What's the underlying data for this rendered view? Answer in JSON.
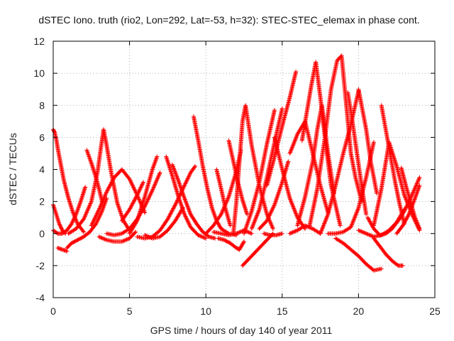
{
  "chart_data": {
    "type": "scatter",
    "title": "dSTEC Iono. truth (rio2, Lon=292, Lat=-53, h=32): STEC-STEC_elemax in phase cont.",
    "xlabel": "GPS time / hours of day 140 of year 2011",
    "ylabel": "dSTEC  / TECUs",
    "xlim": [
      0,
      25
    ],
    "ylim": [
      -4,
      12
    ],
    "xticks": [
      "0",
      "5",
      "10",
      "15",
      "20",
      "25"
    ],
    "yticks": [
      "-4",
      "-2",
      "0",
      "2",
      "4",
      "6",
      "8",
      "10",
      "12"
    ],
    "grid": true,
    "grid_style": "dotted",
    "marker": "+",
    "series_color": "#ff0000",
    "series": [
      {
        "x": [
          0.0,
          0.1,
          0.2,
          0.3,
          0.5,
          0.7,
          1.0,
          1.3,
          1.6,
          2.0
        ],
        "y": [
          6.5,
          6.3,
          5.9,
          5.3,
          4.3,
          3.3,
          2.2,
          1.3,
          0.6,
          0.1
        ]
      },
      {
        "x": [
          0.0,
          0.2,
          0.4,
          0.6,
          0.8
        ],
        "y": [
          1.8,
          1.2,
          0.6,
          0.2,
          0.0
        ]
      },
      {
        "x": [
          0.0,
          0.3,
          0.6,
          0.9,
          1.2,
          1.5,
          1.8,
          2.1
        ],
        "y": [
          0.2,
          0.0,
          0.0,
          0.2,
          0.6,
          1.2,
          2.0,
          2.9
        ]
      },
      {
        "x": [
          0.3,
          0.6,
          0.9
        ],
        "y": [
          -0.9,
          -1.0,
          -1.1
        ]
      },
      {
        "x": [
          0.9,
          1.2,
          1.6,
          2.0,
          2.4,
          2.8,
          3.2,
          3.5
        ],
        "y": [
          -0.9,
          -0.6,
          -0.4,
          -0.2,
          0.1,
          0.6,
          1.4,
          2.2
        ]
      },
      {
        "x": [
          2.2,
          2.5,
          2.8,
          3.0,
          3.2
        ],
        "y": [
          5.2,
          4.4,
          3.5,
          2.8,
          2.0
        ]
      },
      {
        "x": [
          1.0,
          1.5,
          2.0,
          2.5,
          2.9,
          3.1,
          3.3,
          3.5,
          3.8,
          4.2,
          4.6,
          5.0
        ],
        "y": [
          0.0,
          0.3,
          0.9,
          2.0,
          3.8,
          5.2,
          6.5,
          5.5,
          3.8,
          1.9,
          0.8,
          0.2
        ]
      },
      {
        "x": [
          3.0,
          3.5,
          4.0,
          4.5,
          5.0,
          5.4
        ],
        "y": [
          -0.2,
          -0.4,
          -0.5,
          -0.5,
          -0.3,
          0.1
        ]
      },
      {
        "x": [
          4.5,
          5.0,
          5.5,
          5.9
        ],
        "y": [
          0.8,
          1.5,
          2.4,
          3.2
        ]
      },
      {
        "x": [
          2.5,
          3.0,
          3.5,
          4.0,
          4.5,
          5.0,
          5.5,
          6.0
        ],
        "y": [
          0.5,
          1.5,
          2.6,
          3.5,
          4.0,
          3.4,
          2.4,
          1.3
        ]
      },
      {
        "x": [
          5.0,
          5.5,
          6.0,
          6.5,
          6.8
        ],
        "y": [
          0.0,
          0.8,
          2.3,
          4.0,
          4.8
        ]
      },
      {
        "x": [
          5.5,
          6.0,
          6.5,
          7.0,
          7.5,
          8.0,
          8.5,
          9.0,
          9.3
        ],
        "y": [
          -0.2,
          -0.3,
          -0.2,
          0.2,
          0.9,
          1.8,
          2.8,
          3.8,
          4.2
        ]
      },
      {
        "x": [
          7.4,
          7.8,
          8.2,
          8.6,
          9.0,
          9.5,
          10.0
        ],
        "y": [
          4.8,
          3.6,
          2.3,
          1.2,
          0.4,
          -0.1,
          -0.3
        ]
      },
      {
        "x": [
          7.8,
          8.2,
          8.6,
          9.0,
          9.4,
          9.8,
          10.2,
          10.6
        ],
        "y": [
          4.3,
          3.3,
          2.2,
          1.2,
          0.6,
          0.1,
          -0.2,
          -0.3
        ]
      },
      {
        "x": [
          9.2,
          9.5,
          9.8,
          10.1,
          10.4,
          10.7,
          11.0,
          11.5,
          12.0
        ],
        "y": [
          7.3,
          5.8,
          4.2,
          2.8,
          1.6,
          0.8,
          0.3,
          0.0,
          -0.1
        ]
      },
      {
        "x": [
          10.0,
          10.5,
          11.0,
          11.5,
          12.0,
          12.3
        ],
        "y": [
          0.0,
          0.5,
          1.2,
          2.3,
          3.9,
          5.2
        ]
      },
      {
        "x": [
          10.7,
          11.0,
          11.3,
          11.6
        ],
        "y": [
          4.0,
          2.8,
          1.5,
          0.5
        ]
      },
      {
        "x": [
          10.8,
          11.2,
          11.6,
          12.0,
          12.2,
          12.5
        ],
        "y": [
          -0.3,
          -0.4,
          -0.6,
          -0.9,
          -1.0,
          -0.5
        ]
      },
      {
        "x": [
          11.5,
          11.8,
          12.1,
          12.4,
          12.7
        ],
        "y": [
          5.8,
          4.5,
          3.2,
          2.1,
          1.2
        ]
      },
      {
        "x": [
          11.8,
          12.0,
          12.2,
          12.4,
          12.6,
          13.0,
          13.5,
          14.0,
          14.4
        ],
        "y": [
          0.0,
          2.0,
          4.5,
          7.0,
          8.0,
          5.5,
          3.0,
          1.2,
          0.3
        ]
      },
      {
        "x": [
          12.4,
          12.8,
          13.2,
          13.6,
          14.0,
          14.4
        ],
        "y": [
          -2.0,
          -1.6,
          -1.2,
          -0.8,
          -0.4,
          0.0
        ]
      },
      {
        "x": [
          12.5,
          13.0,
          13.5,
          14.0,
          14.5
        ],
        "y": [
          0.0,
          1.4,
          3.2,
          5.6,
          7.7
        ]
      },
      {
        "x": [
          13.0,
          13.5,
          14.0,
          14.5,
          15.0
        ],
        "y": [
          0.3,
          1.5,
          3.5,
          5.7,
          7.8
        ]
      },
      {
        "x": [
          14.0,
          14.5,
          15.0,
          15.5,
          15.9
        ],
        "y": [
          3.0,
          4.8,
          6.7,
          8.5,
          10.1
        ]
      },
      {
        "x": [
          14.5,
          15.0,
          15.5,
          16.0,
          16.5
        ],
        "y": [
          6.0,
          4.0,
          2.2,
          1.0,
          0.3
        ]
      },
      {
        "x": [
          13.5,
          14.0,
          14.5,
          15.0,
          15.4
        ],
        "y": [
          0.3,
          0.8,
          1.8,
          3.2,
          4.5
        ]
      },
      {
        "x": [
          15.5,
          16.0,
          16.5,
          17.0,
          17.5,
          18.0
        ],
        "y": [
          5.0,
          6.2,
          7.0,
          5.0,
          3.0,
          1.3
        ]
      },
      {
        "x": [
          16.3,
          16.6,
          16.9,
          17.2,
          17.5,
          17.8,
          18.2,
          18.8
        ],
        "y": [
          5.8,
          7.5,
          9.2,
          10.7,
          8.5,
          6.0,
          3.0,
          0.5
        ]
      },
      {
        "x": [
          16.0,
          16.5,
          17.0,
          17.3,
          17.6,
          18.0,
          18.4
        ],
        "y": [
          0.5,
          2.3,
          4.5,
          6.5,
          8.0,
          5.0,
          2.5
        ]
      },
      {
        "x": [
          16.8,
          17.3,
          17.8,
          18.2,
          18.6,
          18.9
        ],
        "y": [
          0.5,
          2.8,
          6.0,
          9.0,
          10.8,
          11.1
        ]
      },
      {
        "x": [
          18.9,
          19.1,
          19.3,
          19.5,
          19.8,
          20.2
        ],
        "y": [
          11.0,
          9.0,
          7.0,
          5.0,
          3.5,
          2.0
        ]
      },
      {
        "x": [
          17.5,
          18.0,
          18.5,
          19.0,
          19.5,
          20.0
        ],
        "y": [
          0.0,
          1.2,
          3.0,
          5.0,
          6.8,
          8.9
        ]
      },
      {
        "x": [
          19.3,
          19.6,
          19.9,
          20.2,
          20.5
        ],
        "y": [
          8.8,
          7.0,
          5.0,
          3.0,
          1.2
        ]
      },
      {
        "x": [
          18.0,
          18.5,
          19.0,
          19.5,
          20.0,
          20.5,
          21.0
        ],
        "y": [
          0.0,
          0.0,
          0.1,
          0.4,
          1.6,
          3.5,
          5.7
        ]
      },
      {
        "x": [
          20.0,
          20.2,
          20.5,
          20.8,
          21.2
        ],
        "y": [
          9.0,
          8.0,
          6.5,
          4.5,
          2.5
        ]
      },
      {
        "x": [
          18.5,
          19.0,
          19.5,
          20.0,
          20.5,
          21.0,
          21.5
        ],
        "y": [
          -0.3,
          -0.6,
          -1.0,
          -1.4,
          -1.9,
          -2.3,
          -2.2
        ]
      },
      {
        "x": [
          21.5,
          21.8,
          22.1,
          22.4,
          22.7,
          23.0
        ],
        "y": [
          8.0,
          6.4,
          4.8,
          3.2,
          1.8,
          0.6
        ]
      },
      {
        "x": [
          21.0,
          21.5,
          22.0,
          22.5,
          23.0,
          23.5,
          24.0
        ],
        "y": [
          0.5,
          2.8,
          5.7,
          4.2,
          2.4,
          1.2,
          0.2
        ]
      },
      {
        "x": [
          20.6,
          21.0,
          21.4,
          21.8,
          22.2,
          22.6,
          23.0,
          23.5,
          24.0
        ],
        "y": [
          1.0,
          0.3,
          -0.1,
          0.0,
          0.3,
          0.8,
          1.4,
          2.4,
          3.5
        ]
      },
      {
        "x": [
          21.0,
          21.4,
          21.8,
          22.2,
          22.6,
          22.9
        ],
        "y": [
          -0.3,
          -0.8,
          -1.3,
          -1.7,
          -2.0,
          -2.0
        ]
      },
      {
        "x": [
          20.0,
          20.5,
          21.0,
          21.5,
          22.0,
          22.5,
          23.0
        ],
        "y": [
          0.2,
          0.0,
          -0.2,
          -0.1,
          0.2,
          0.7,
          1.5
        ]
      },
      {
        "x": [
          22.8,
          23.1,
          23.4,
          23.7,
          24.0
        ],
        "y": [
          4.1,
          3.0,
          2.0,
          1.0,
          0.3
        ]
      },
      {
        "x": [
          22.5,
          22.9,
          23.3,
          23.7,
          24.0
        ],
        "y": [
          0.0,
          0.5,
          1.2,
          2.2,
          3.0
        ]
      },
      {
        "x": [
          15.5,
          16.0,
          16.5,
          17.0,
          17.5
        ],
        "y": [
          0.0,
          0.2,
          0.5,
          0.3,
          0.0
        ]
      },
      {
        "x": [
          3.5,
          4.0,
          4.5,
          5.0,
          5.5,
          6.0,
          6.5,
          7.0
        ],
        "y": [
          0.0,
          -0.1,
          0.0,
          0.3,
          0.9,
          1.7,
          2.7,
          3.8
        ]
      },
      {
        "x": [
          6.0,
          6.5,
          7.0,
          7.5,
          8.0,
          8.5
        ],
        "y": [
          -0.1,
          -0.3,
          -0.2,
          0.2,
          0.8,
          1.6
        ]
      },
      {
        "x": [
          13.8,
          14.2,
          14.6,
          15.0
        ],
        "y": [
          0.0,
          -0.1,
          -0.1,
          0.0
        ]
      },
      {
        "x": [
          10.5,
          11.0,
          11.5,
          12.0,
          12.5,
          13.0
        ],
        "y": [
          0.1,
          0.0,
          -0.1,
          0.0,
          0.2,
          0.0
        ]
      }
    ]
  }
}
